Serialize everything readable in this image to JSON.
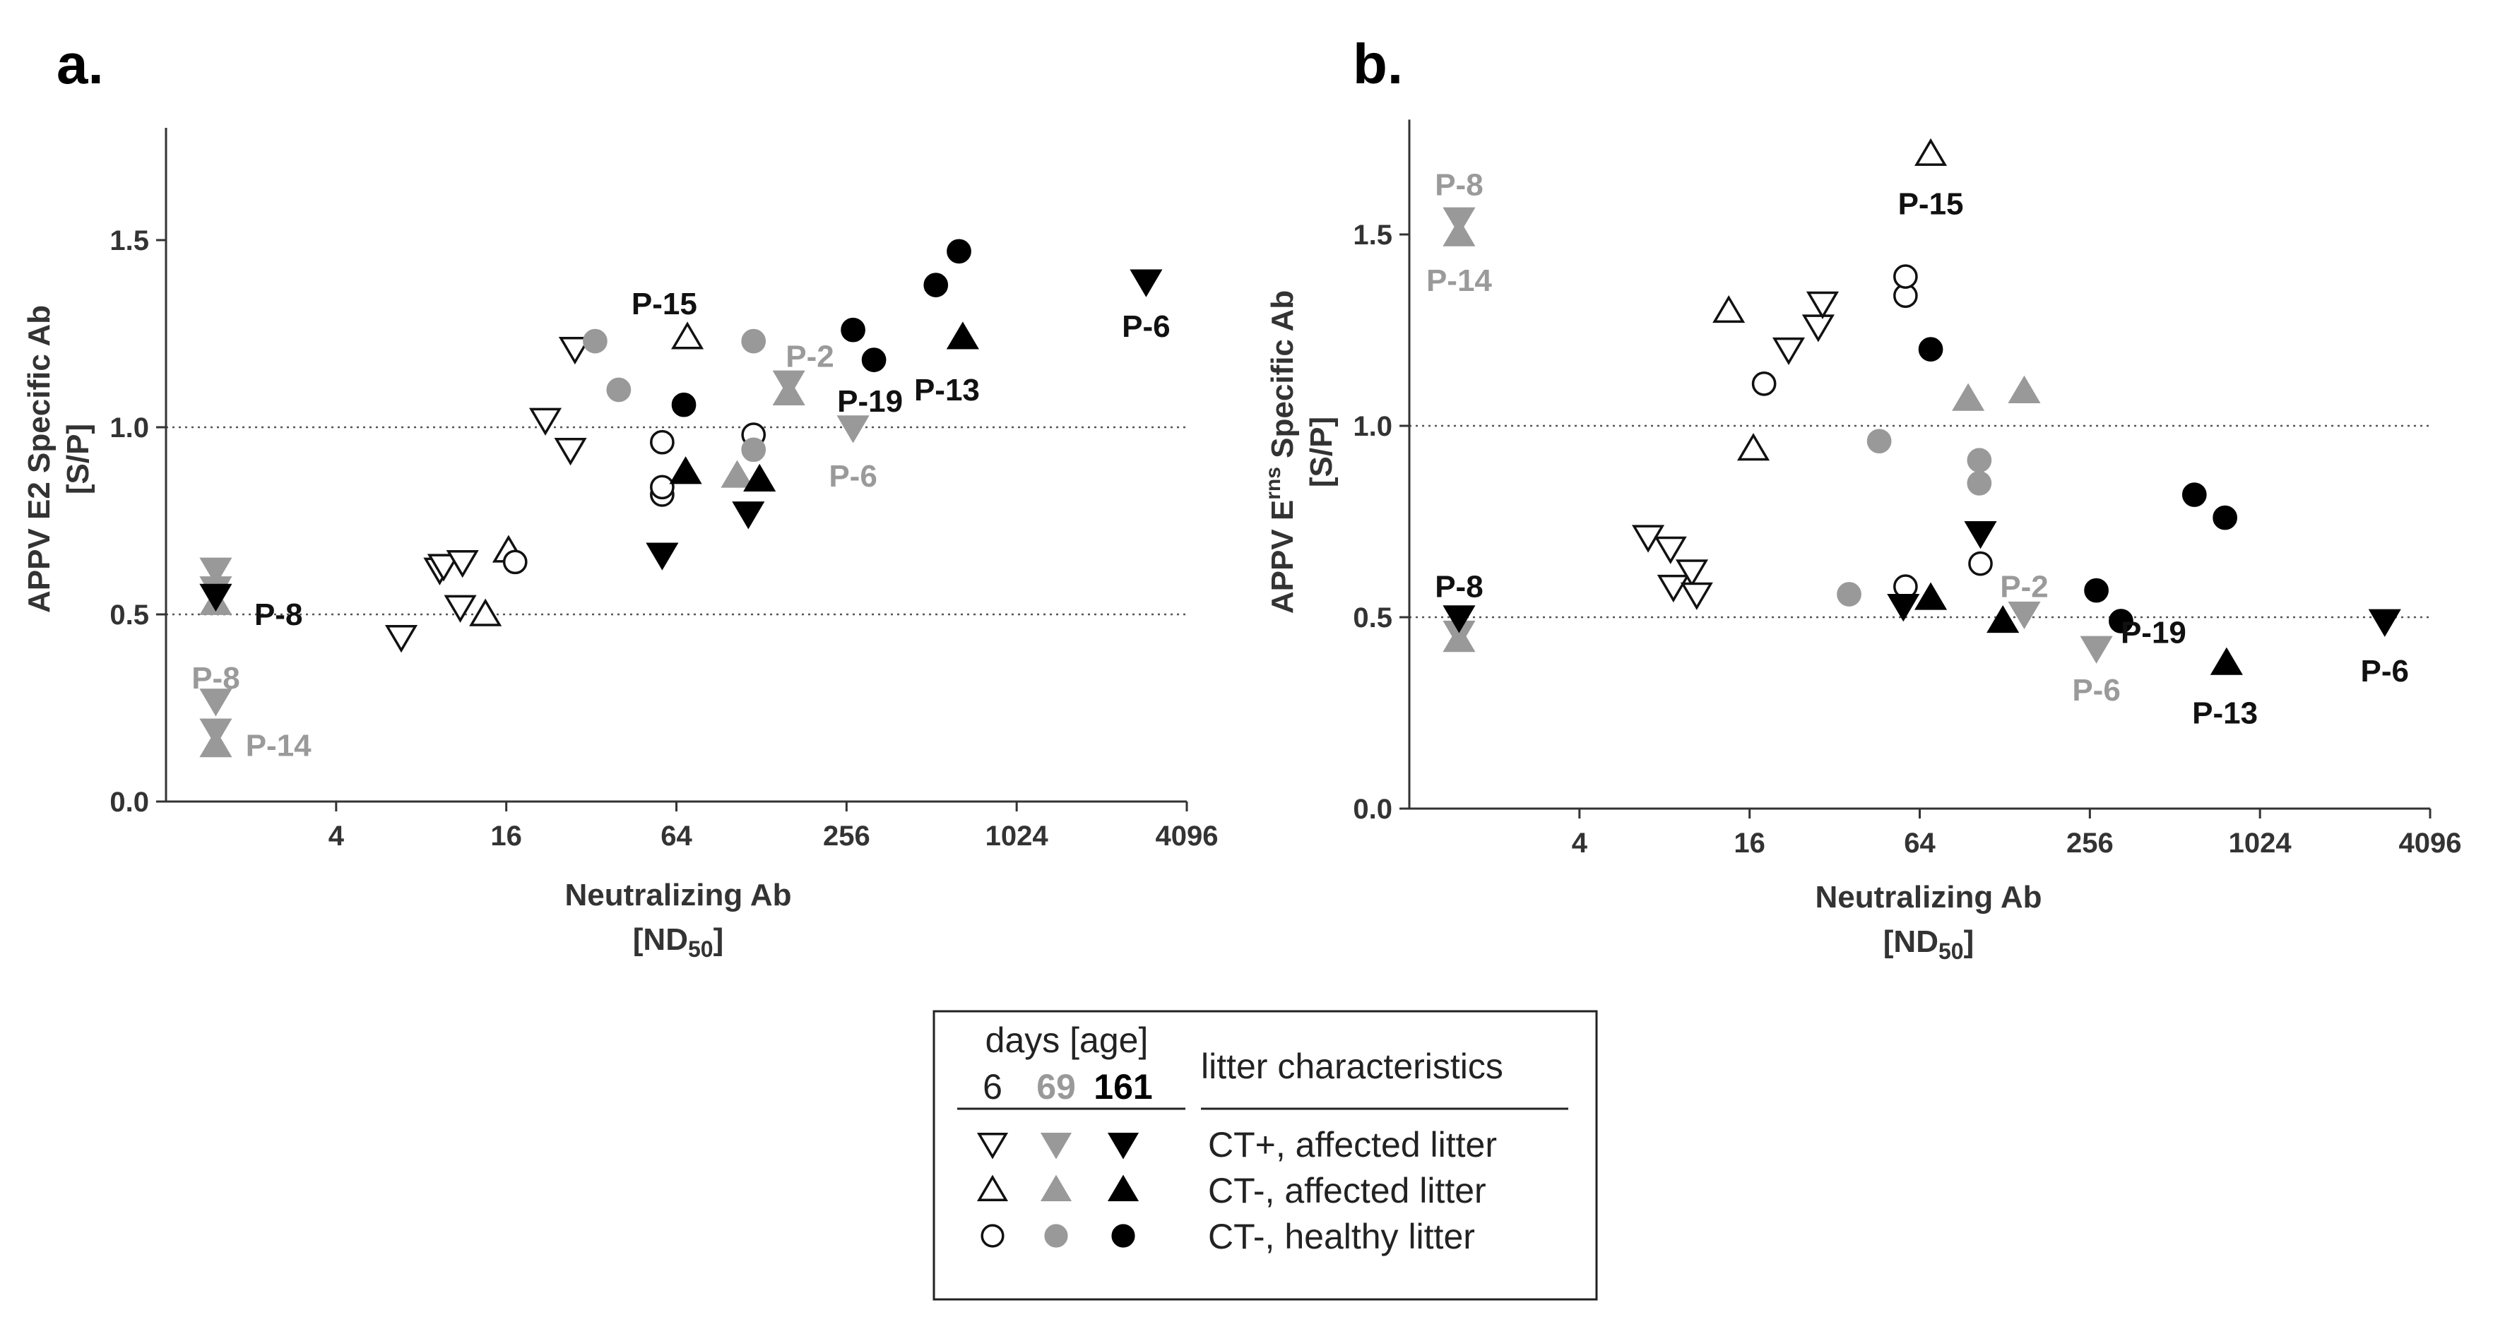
{
  "figure": {
    "legend": {
      "header": "days [age]",
      "days": [
        {
          "label": "6",
          "color": "#222222",
          "bold": false
        },
        {
          "label": "69",
          "color": "#999999",
          "bold": true
        },
        {
          "label": "161",
          "color": "#000000",
          "bold": true
        }
      ],
      "characteristics_header": "litter characteristics",
      "rows": [
        {
          "marker": "tri-down",
          "label": "CT+, affected litter"
        },
        {
          "marker": "tri-up",
          "label": "CT-, affected litter"
        },
        {
          "marker": "circle",
          "label": "CT-, healthy litter"
        }
      ]
    }
  },
  "colors": {
    "day6": "#ffffff",
    "day69": "#999999",
    "day161": "#000000",
    "grey_label": "#9a9a9a",
    "black_label": "#111111"
  },
  "chart_data": [
    {
      "type": "scatter",
      "panel": "a.",
      "title": "",
      "ylabel": "APPV E2 Specific Ab",
      "ylabel_sup": "",
      "ylabel_tail": "",
      "ylabel2": "[S/P]",
      "xlabel": "Neutralizing Ab",
      "xlabel2_main": "[ND",
      "xlabel2_sub": "50",
      "xlabel2_tail": "]",
      "xscale": "log2",
      "xlim": [
        1,
        4096
      ],
      "ylim": [
        0,
        1.8
      ],
      "xticks": [
        {
          "v": 4,
          "label": "4"
        },
        {
          "v": 16,
          "label": "16"
        },
        {
          "v": 64,
          "label": "64"
        },
        {
          "v": 256,
          "label": "256"
        },
        {
          "v": 1024,
          "label": "1024"
        },
        {
          "v": 4096,
          "label": "4096"
        }
      ],
      "yticks": [
        {
          "v": 0,
          "label": "0.0"
        },
        {
          "v": 0.5,
          "label": "0.5"
        },
        {
          "v": 1.0,
          "label": "1.0"
        },
        {
          "v": 1.5,
          "label": "1.5"
        }
      ],
      "reference_lines": [
        0.5,
        1.0
      ],
      "points": [
        {
          "x": 6.8,
          "y": 0.44,
          "m": "tri-down",
          "d": 6
        },
        {
          "x": 9.3,
          "y": 0.62,
          "m": "tri-down",
          "d": 6
        },
        {
          "x": 9.6,
          "y": 0.63,
          "m": "tri-down",
          "d": 6
        },
        {
          "x": 11.0,
          "y": 0.52,
          "m": "tri-down",
          "d": 6
        },
        {
          "x": 11.2,
          "y": 0.64,
          "m": "tri-down",
          "d": 6
        },
        {
          "x": 22.0,
          "y": 1.02,
          "m": "tri-down",
          "d": 6
        },
        {
          "x": 27.0,
          "y": 0.94,
          "m": "tri-down",
          "d": 6
        },
        {
          "x": 28.0,
          "y": 1.21,
          "m": "tri-down",
          "d": 6
        },
        {
          "x": 13.5,
          "y": 0.5,
          "m": "tri-up",
          "d": 6
        },
        {
          "x": 16.3,
          "y": 0.67,
          "m": "tri-up",
          "d": 6
        },
        {
          "x": 70.0,
          "y": 1.24,
          "m": "tri-up",
          "d": 6
        },
        {
          "x": 17.2,
          "y": 0.64,
          "m": "circle",
          "d": 6
        },
        {
          "x": 57.0,
          "y": 0.82,
          "m": "circle",
          "d": 6
        },
        {
          "x": 57.0,
          "y": 0.84,
          "m": "circle",
          "d": 6
        },
        {
          "x": 57.0,
          "y": 0.96,
          "m": "circle",
          "d": 6
        },
        {
          "x": 120.0,
          "y": 0.98,
          "m": "circle",
          "d": 6
        },
        {
          "x": 1.5,
          "y": 0.62,
          "m": "tri-down",
          "d": 69
        },
        {
          "x": 1.5,
          "y": 0.57,
          "m": "tri-down",
          "d": 69
        },
        {
          "x": 1.5,
          "y": 0.27,
          "m": "tri-down",
          "d": 69
        },
        {
          "x": 1.5,
          "y": 0.19,
          "m": "tri-down",
          "d": 69
        },
        {
          "x": 160.0,
          "y": 1.12,
          "m": "tri-down",
          "d": 69
        },
        {
          "x": 270.0,
          "y": 1.0,
          "m": "tri-down",
          "d": 69
        },
        {
          "x": 1.5,
          "y": 0.53,
          "m": "tri-up",
          "d": 69
        },
        {
          "x": 1.5,
          "y": 0.15,
          "m": "tri-up",
          "d": 69
        },
        {
          "x": 105.0,
          "y": 0.87,
          "m": "tri-up",
          "d": 69
        },
        {
          "x": 160.0,
          "y": 1.09,
          "m": "tri-up",
          "d": 69
        },
        {
          "x": 33.0,
          "y": 1.23,
          "m": "circle",
          "d": 69
        },
        {
          "x": 40.0,
          "y": 1.1,
          "m": "circle",
          "d": 69
        },
        {
          "x": 120.0,
          "y": 0.94,
          "m": "circle",
          "d": 69
        },
        {
          "x": 120.0,
          "y": 1.23,
          "m": "circle",
          "d": 69
        },
        {
          "x": 1.5,
          "y": 0.55,
          "m": "tri-down",
          "d": 161
        },
        {
          "x": 57.0,
          "y": 0.66,
          "m": "tri-down",
          "d": 161
        },
        {
          "x": 115.0,
          "y": 0.77,
          "m": "tri-down",
          "d": 161
        },
        {
          "x": 2940.0,
          "y": 1.39,
          "m": "tri-down",
          "d": 161
        },
        {
          "x": 69.0,
          "y": 0.88,
          "m": "tri-up",
          "d": 161
        },
        {
          "x": 126.0,
          "y": 0.86,
          "m": "tri-up",
          "d": 161
        },
        {
          "x": 660.0,
          "y": 1.24,
          "m": "tri-up",
          "d": 161
        },
        {
          "x": 68.0,
          "y": 1.06,
          "m": "circle",
          "d": 161
        },
        {
          "x": 270.0,
          "y": 1.26,
          "m": "circle",
          "d": 161
        },
        {
          "x": 320.0,
          "y": 1.18,
          "m": "circle",
          "d": 161
        },
        {
          "x": 530.0,
          "y": 1.38,
          "m": "circle",
          "d": 161
        },
        {
          "x": 640.0,
          "y": 1.47,
          "m": "circle",
          "d": 161
        }
      ],
      "annotations": [
        {
          "text": "P-15",
          "x": 58.0,
          "y": 1.33,
          "color": "black"
        },
        {
          "text": "P-2",
          "x": 190.0,
          "y": 1.19,
          "color": "grey"
        },
        {
          "text": "P-6",
          "x": 2940.0,
          "y": 1.27,
          "color": "black"
        },
        {
          "text": "P-19",
          "x": 310.0,
          "y": 1.07,
          "color": "black"
        },
        {
          "text": "P-13",
          "x": 580.0,
          "y": 1.1,
          "color": "black"
        },
        {
          "text": "P-6",
          "x": 270.0,
          "y": 0.87,
          "color": "grey"
        },
        {
          "text": "P-8",
          "x": 2.5,
          "y": 0.5,
          "color": "black"
        },
        {
          "text": "P-8",
          "x": 1.5,
          "y": 0.33,
          "color": "grey"
        },
        {
          "text": "P-14",
          "x": 2.5,
          "y": 0.15,
          "color": "grey"
        }
      ]
    },
    {
      "type": "scatter",
      "panel": "b.",
      "title": "",
      "ylabel": "APPV E",
      "ylabel_sup": "rns",
      "ylabel_tail": " Specific Ab",
      "ylabel2": "[S/P]",
      "xlabel": "Neutralizing Ab",
      "xlabel2_main": "[ND",
      "xlabel2_sub": "50",
      "xlabel2_tail": "]",
      "xscale": "log2",
      "xlim": [
        1,
        4096
      ],
      "ylim": [
        0,
        1.8
      ],
      "xticks": [
        {
          "v": 4,
          "label": "4"
        },
        {
          "v": 16,
          "label": "16"
        },
        {
          "v": 64,
          "label": "64"
        },
        {
          "v": 256,
          "label": "256"
        },
        {
          "v": 1024,
          "label": "1024"
        },
        {
          "v": 4096,
          "label": "4096"
        }
      ],
      "yticks": [
        {
          "v": 0,
          "label": "0.0"
        },
        {
          "v": 0.5,
          "label": "0.5"
        },
        {
          "v": 1.0,
          "label": "1.0"
        },
        {
          "v": 1.5,
          "label": "1.5"
        }
      ],
      "reference_lines": [
        0.5,
        1.0
      ],
      "points": [
        {
          "x": 7.0,
          "y": 0.71,
          "m": "tri-down",
          "d": 6
        },
        {
          "x": 8.4,
          "y": 0.68,
          "m": "tri-down",
          "d": 6
        },
        {
          "x": 8.6,
          "y": 0.58,
          "m": "tri-down",
          "d": 6
        },
        {
          "x": 10.0,
          "y": 0.62,
          "m": "tri-down",
          "d": 6
        },
        {
          "x": 10.4,
          "y": 0.56,
          "m": "tri-down",
          "d": 6
        },
        {
          "x": 22.0,
          "y": 1.2,
          "m": "tri-down",
          "d": 6
        },
        {
          "x": 28.0,
          "y": 1.26,
          "m": "tri-down",
          "d": 6
        },
        {
          "x": 29.0,
          "y": 1.32,
          "m": "tri-down",
          "d": 6
        },
        {
          "x": 13.5,
          "y": 1.3,
          "m": "tri-up",
          "d": 6
        },
        {
          "x": 16.5,
          "y": 0.94,
          "m": "tri-up",
          "d": 6
        },
        {
          "x": 70.0,
          "y": 1.71,
          "m": "tri-up",
          "d": 6
        },
        {
          "x": 18.0,
          "y": 1.11,
          "m": "circle",
          "d": 6
        },
        {
          "x": 57.0,
          "y": 1.34,
          "m": "circle",
          "d": 6
        },
        {
          "x": 57.0,
          "y": 1.39,
          "m": "circle",
          "d": 6
        },
        {
          "x": 57.0,
          "y": 0.58,
          "m": "circle",
          "d": 6
        },
        {
          "x": 105.0,
          "y": 0.64,
          "m": "circle",
          "d": 6
        },
        {
          "x": 1.5,
          "y": 1.54,
          "m": "tri-down",
          "d": 69
        },
        {
          "x": 1.5,
          "y": 0.46,
          "m": "tri-down",
          "d": 69
        },
        {
          "x": 150.0,
          "y": 0.51,
          "m": "tri-down",
          "d": 69
        },
        {
          "x": 270.0,
          "y": 0.42,
          "m": "tri-down",
          "d": 69
        },
        {
          "x": 1.5,
          "y": 1.5,
          "m": "tri-up",
          "d": 69
        },
        {
          "x": 1.5,
          "y": 0.44,
          "m": "tri-up",
          "d": 69
        },
        {
          "x": 95.0,
          "y": 1.07,
          "m": "tri-up",
          "d": 69
        },
        {
          "x": 150.0,
          "y": 1.09,
          "m": "tri-up",
          "d": 69
        },
        {
          "x": 36.0,
          "y": 0.56,
          "m": "circle",
          "d": 69
        },
        {
          "x": 46.0,
          "y": 0.96,
          "m": "circle",
          "d": 69
        },
        {
          "x": 104.0,
          "y": 0.85,
          "m": "circle",
          "d": 69
        },
        {
          "x": 104.0,
          "y": 0.91,
          "m": "circle",
          "d": 69
        },
        {
          "x": 1.5,
          "y": 0.5,
          "m": "tri-down",
          "d": 161
        },
        {
          "x": 56.0,
          "y": 0.53,
          "m": "tri-down",
          "d": 161
        },
        {
          "x": 105.0,
          "y": 0.72,
          "m": "tri-down",
          "d": 161
        },
        {
          "x": 2830.0,
          "y": 0.49,
          "m": "tri-down",
          "d": 161
        },
        {
          "x": 70.0,
          "y": 0.55,
          "m": "tri-up",
          "d": 161
        },
        {
          "x": 126.0,
          "y": 0.49,
          "m": "tri-up",
          "d": 161
        },
        {
          "x": 780.0,
          "y": 0.38,
          "m": "tri-up",
          "d": 161
        },
        {
          "x": 70.0,
          "y": 1.2,
          "m": "circle",
          "d": 161
        },
        {
          "x": 270.0,
          "y": 0.57,
          "m": "circle",
          "d": 161
        },
        {
          "x": 330.0,
          "y": 0.49,
          "m": "circle",
          "d": 161
        },
        {
          "x": 600.0,
          "y": 0.82,
          "m": "circle",
          "d": 161
        },
        {
          "x": 770.0,
          "y": 0.76,
          "m": "circle",
          "d": 161
        }
      ],
      "annotations": [
        {
          "text": "P-8",
          "x": 1.5,
          "y": 1.63,
          "color": "grey"
        },
        {
          "text": "P-14",
          "x": 1.5,
          "y": 1.38,
          "color": "grey"
        },
        {
          "text": "P-15",
          "x": 70.0,
          "y": 1.58,
          "color": "black"
        },
        {
          "text": "P-8",
          "x": 1.5,
          "y": 0.58,
          "color": "black"
        },
        {
          "text": "P-2",
          "x": 150.0,
          "y": 0.58,
          "color": "grey"
        },
        {
          "text": "P-19",
          "x": 430.0,
          "y": 0.46,
          "color": "black"
        },
        {
          "text": "P-6",
          "x": 270.0,
          "y": 0.31,
          "color": "grey"
        },
        {
          "text": "P-13",
          "x": 770.0,
          "y": 0.25,
          "color": "black"
        },
        {
          "text": "P-6",
          "x": 2830.0,
          "y": 0.36,
          "color": "black"
        }
      ]
    }
  ]
}
